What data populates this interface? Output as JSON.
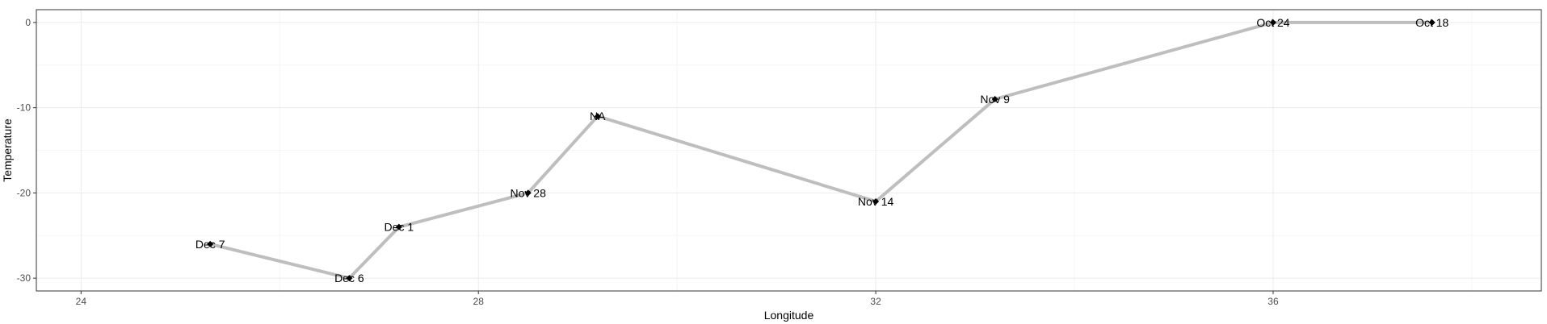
{
  "chart_data": {
    "type": "line",
    "xlabel": "Longitude",
    "ylabel": "Temperature",
    "xlim": [
      23.55,
      38.7
    ],
    "ylim": [
      -31.5,
      1.5
    ],
    "x_ticks": [
      24,
      28,
      32,
      36
    ],
    "y_ticks": [
      0,
      -10,
      -20,
      -30
    ],
    "grid": true,
    "legend": "none",
    "series": [
      {
        "points": [
          {
            "x": 25.3,
            "y": -26,
            "label": "Dec 7"
          },
          {
            "x": 26.7,
            "y": -30,
            "label": "Dec 6"
          },
          {
            "x": 27.2,
            "y": -24,
            "label": "Dec 1"
          },
          {
            "x": 28.5,
            "y": -20,
            "label": "Nov 28"
          },
          {
            "x": 29.2,
            "y": -11,
            "label": "NA"
          },
          {
            "x": 32.0,
            "y": -21,
            "label": "Nov 14"
          },
          {
            "x": 33.2,
            "y": -9,
            "label": "Nov 9"
          },
          {
            "x": 36.0,
            "y": 0,
            "label": "Oct 24"
          },
          {
            "x": 37.6,
            "y": 0,
            "label": "Oct 18"
          }
        ]
      }
    ],
    "colors": {
      "line": "#bebebe",
      "point": "#000000",
      "grid_major": "#ebebeb",
      "grid_minor": "#f5f5f5",
      "panel_border": "#333333",
      "tick_text": "#4d4d4d"
    }
  }
}
